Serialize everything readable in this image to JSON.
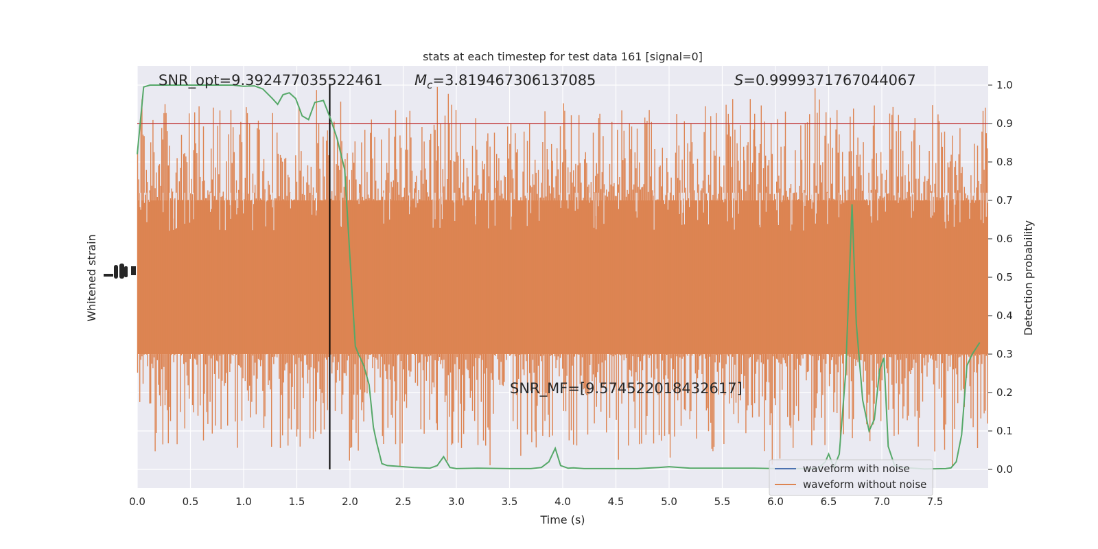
{
  "chart_data": {
    "type": "line",
    "title": "stats at each timestep for test data 161 [signal=0]",
    "xlabel": "Time (s)",
    "ylabel_left": "Whitened strain",
    "ylabel_right": "Detection probability",
    "xlim": [
      0.0,
      8.0
    ],
    "ylim_right": [
      -0.05,
      1.05
    ],
    "x_ticks": [
      "0.0",
      "0.5",
      "1.0",
      "1.5",
      "2.0",
      "2.5",
      "3.0",
      "3.5",
      "4.0",
      "4.5",
      "5.0",
      "5.5",
      "6.0",
      "6.5",
      "7.0",
      "7.5"
    ],
    "right_ticks": [
      "0.0",
      "0.1",
      "0.2",
      "0.3",
      "0.4",
      "0.5",
      "0.6",
      "0.7",
      "0.8",
      "0.9",
      "1.0"
    ],
    "grid": true,
    "legend_position": "lower-right",
    "annotations": {
      "snr_opt": "SNR_opt=9.392477035522461",
      "mc_symbol": "M",
      "mc_sub": "c",
      "mc_value": "=3.819467306137085",
      "s_symbol": "S",
      "s_value": "=0.9999371767044067",
      "snr_mf": "SNR_MF=[9.574522018432617]"
    },
    "threshold": 0.9,
    "marker_time": 1.81,
    "series": [
      {
        "name": "waveform with noise",
        "color": "#4c72b0",
        "note": "hidden behind the orange trace"
      },
      {
        "name": "waveform without noise",
        "color": "#dd8452",
        "typical_range": [
          0.3,
          0.7
        ],
        "extreme_range": [
          0.0,
          1.0
        ]
      },
      {
        "color": "#55a868",
        "x": [
          0.0,
          0.06,
          0.12,
          0.2,
          0.3,
          0.4,
          0.5,
          0.6,
          0.7,
          0.8,
          0.9,
          1.0,
          1.1,
          1.18,
          1.27,
          1.32,
          1.37,
          1.43,
          1.49,
          1.55,
          1.61,
          1.67,
          1.75,
          1.82,
          1.88,
          1.95,
          2.0,
          2.05,
          2.08,
          2.13,
          2.18,
          2.22,
          2.25,
          2.3,
          2.35,
          2.45,
          2.6,
          2.75,
          2.82,
          2.88,
          2.94,
          3.0,
          3.2,
          3.5,
          3.7,
          3.8,
          3.87,
          3.93,
          3.98,
          4.05,
          4.1,
          4.2,
          4.4,
          4.7,
          4.9,
          5.0,
          5.2,
          5.5,
          5.8,
          6.0,
          6.2,
          6.4,
          6.47,
          6.5,
          6.55,
          6.6,
          6.66,
          6.72,
          6.76,
          6.82,
          6.88,
          6.93,
          6.98,
          7.02,
          7.06,
          7.12,
          7.2,
          7.4,
          7.6,
          7.65,
          7.7,
          7.75,
          7.8,
          7.85,
          7.92
        ],
        "values": [
          0.82,
          0.995,
          1.0,
          1.0,
          1.0,
          1.0,
          1.0,
          1.0,
          1.0,
          1.0,
          1.0,
          0.997,
          0.998,
          0.99,
          0.965,
          0.95,
          0.975,
          0.98,
          0.965,
          0.92,
          0.91,
          0.955,
          0.96,
          0.91,
          0.86,
          0.78,
          0.55,
          0.32,
          0.3,
          0.27,
          0.22,
          0.11,
          0.07,
          0.015,
          0.01,
          0.008,
          0.005,
          0.003,
          0.01,
          0.033,
          0.005,
          0.002,
          0.003,
          0.002,
          0.002,
          0.005,
          0.02,
          0.055,
          0.01,
          0.003,
          0.004,
          0.002,
          0.002,
          0.002,
          0.005,
          0.007,
          0.003,
          0.003,
          0.003,
          0.002,
          0.002,
          0.002,
          0.02,
          0.04,
          0.005,
          0.04,
          0.25,
          0.69,
          0.38,
          0.18,
          0.1,
          0.13,
          0.26,
          0.29,
          0.06,
          0.01,
          0.005,
          0.001,
          0.002,
          0.004,
          0.02,
          0.09,
          0.27,
          0.3,
          0.33
        ]
      }
    ]
  }
}
